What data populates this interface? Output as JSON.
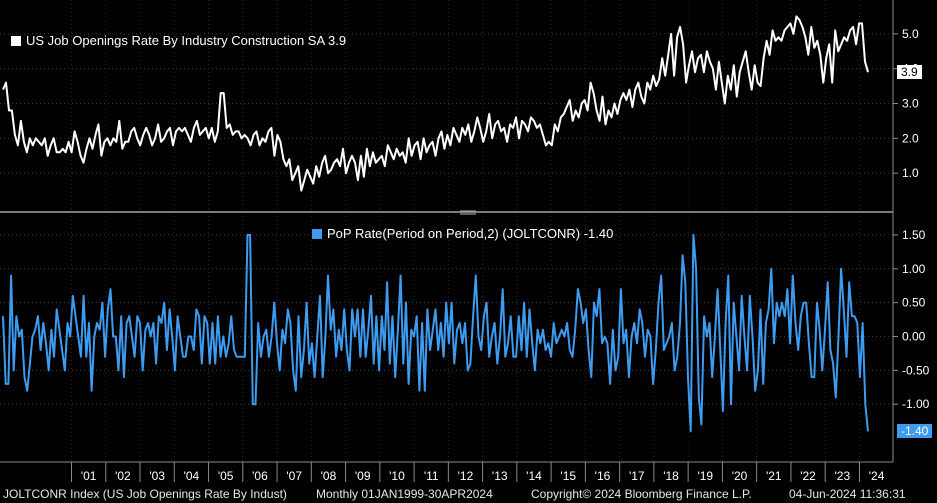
{
  "chart_data": [
    {
      "type": "line",
      "title": "US Job Openings Rate By Industry Construction SA",
      "legend_label": "US Job Openings Rate By Industry Construction SA 3.9",
      "last_value_label": "3.9",
      "color": "#ffffff",
      "ylim": [
        0.0,
        5.8
      ],
      "yticks": [
        "1.0",
        "2.0",
        "3.0",
        "4.0",
        "5.0"
      ],
      "values": [
        3.4,
        3.6,
        2.8,
        2.8,
        2.1,
        1.8,
        2.5,
        1.9,
        1.6,
        2.0,
        1.8,
        2.0,
        1.9,
        1.8,
        2.0,
        1.5,
        1.8,
        2.0,
        1.6,
        1.6,
        1.7,
        1.6,
        1.9,
        1.6,
        2.2,
        1.9,
        1.5,
        1.3,
        1.7,
        2.0,
        1.7,
        2.1,
        2.4,
        1.5,
        1.9,
        2.0,
        1.8,
        2.0,
        1.9,
        2.5,
        1.7,
        1.9,
        1.9,
        2.2,
        2.3,
        2.0,
        1.8,
        2.1,
        2.3,
        2.1,
        1.8,
        2.0,
        2.4,
        1.9,
        2.0,
        2.2,
        2.3,
        1.8,
        2.2,
        2.3,
        2.2,
        2.3,
        2.1,
        1.9,
        2.3,
        2.5,
        2.1,
        2.2,
        2.3,
        2.0,
        2.3,
        1.9,
        2.2,
        3.3,
        3.3,
        2.3,
        2.4,
        2.1,
        2.2,
        2.2,
        2.0,
        2.1,
        2.0,
        1.8,
        2.1,
        2.2,
        1.8,
        2.0,
        1.9,
        2.2,
        2.3,
        1.5,
        2.1,
        1.9,
        1.4,
        1.2,
        1.4,
        0.8,
        1.0,
        1.2,
        0.5,
        0.8,
        1.1,
        0.9,
        0.7,
        1.2,
        0.9,
        1.3,
        1.5,
        1.0,
        1.1,
        1.3,
        1.4,
        1.2,
        1.7,
        1.0,
        1.3,
        1.5,
        1.3,
        0.8,
        1.5,
        0.9,
        1.7,
        1.2,
        1.6,
        1.3,
        1.4,
        1.5,
        1.2,
        1.8,
        1.6,
        1.4,
        1.7,
        1.5,
        1.6,
        1.3,
        2.0,
        1.5,
        1.8,
        1.9,
        1.4,
        2.0,
        1.6,
        1.8,
        1.9,
        1.5,
        2.0,
        2.2,
        1.7,
        2.1,
        1.8,
        2.3,
        2.1,
        1.9,
        2.3,
        2.1,
        2.4,
        1.9,
        2.2,
        2.6,
        2.3,
        1.9,
        2.2,
        2.7,
        2.0,
        2.4,
        2.5,
        2.2,
        2.3,
        1.9,
        2.4,
        2.3,
        2.6,
        2.0,
        2.5,
        2.4,
        2.2,
        2.6,
        2.5,
        2.3,
        2.4,
        2.1,
        1.8,
        1.9,
        1.8,
        2.4,
        2.2,
        2.6,
        2.7,
        2.9,
        3.1,
        2.5,
        2.8,
        2.6,
        3.0,
        3.1,
        2.8,
        3.6,
        3.3,
        2.8,
        2.5,
        3.2,
        2.4,
        2.8,
        2.6,
        3.0,
        2.7,
        3.1,
        3.3,
        3.1,
        3.4,
        2.9,
        3.4,
        3.6,
        3.2,
        3.0,
        3.6,
        3.4,
        3.8,
        3.5,
        3.7,
        4.3,
        3.8,
        4.4,
        5.0,
        3.8,
        4.9,
        5.2,
        4.7,
        3.6,
        4.1,
        4.5,
        3.9,
        4.3,
        4.4,
        3.9,
        4.5,
        4.2,
        4.0,
        3.4,
        4.2,
        3.6,
        3.0,
        3.8,
        3.4,
        4.1,
        3.2,
        3.9,
        4.2,
        4.5,
        3.9,
        3.4,
        4.1,
        3.6,
        3.5,
        4.3,
        4.8,
        4.4,
        5.1,
        4.8,
        4.9,
        4.8,
        5.1,
        5.2,
        5.3,
        5.0,
        5.5,
        5.4,
        5.2,
        4.9,
        4.4,
        5.2,
        4.6,
        4.8,
        4.4,
        3.6,
        4.3,
        4.7,
        3.6,
        5.1,
        4.5,
        4.7,
        4.9,
        4.8,
        5.1,
        5.2,
        4.7,
        5.3,
        5.3,
        4.2,
        3.9
      ]
    },
    {
      "type": "line",
      "title": "PoP Rate(Period on Period,2) (JOLTCONR)",
      "legend_label": "PoP Rate(Period on Period,2) (JOLTCONR) -1.40",
      "last_value_label": "-1.40",
      "color": "#3d9bf0",
      "ylim": [
        -1.75,
        1.75
      ],
      "yticks": [
        "-1.00",
        "-0.50",
        "0.00",
        "0.50",
        "1.00",
        "1.50"
      ],
      "values": [
        0.3,
        -0.7,
        -0.7,
        0.9,
        -0.5,
        0.3,
        0.0,
        0.1,
        -0.6,
        -0.8,
        -0.4,
        0.0,
        0.1,
        0.3,
        -0.2,
        0.2,
        -0.1,
        -0.5,
        0.1,
        -0.3,
        0.4,
        0.1,
        -0.2,
        -0.5,
        0.2,
        0.0,
        0.6,
        0.3,
        0.0,
        -0.3,
        0.6,
        -0.3,
        0.2,
        -0.8,
        0.0,
        0.2,
        0.1,
        0.5,
        -0.3,
        0.4,
        0.7,
        0.0,
        0.0,
        -0.5,
        0.3,
        -0.6,
        0.2,
        0.3,
        0.0,
        -0.3,
        0.3,
        0.2,
        -0.5,
        0.1,
        0.2,
        0.0,
        0.2,
        -0.4,
        0.3,
        0.2,
        0.5,
        -0.2,
        0.4,
        0.0,
        -0.5,
        0.3,
        0.0,
        -0.3,
        -0.3,
        0.0,
        0.0,
        -0.2,
        0.4,
        0.3,
        -0.4,
        0.3,
        0.2,
        -0.4,
        0.2,
        -0.4,
        0.3,
        -0.3,
        0.0,
        -0.3,
        -0.1,
        0.3,
        -0.2,
        -0.3,
        -0.3,
        -0.3,
        -0.3,
        1.5,
        1.5,
        -1.0,
        -1.0,
        0.2,
        -0.3,
        0.0,
        0.1,
        -0.3,
        0.0,
        0.5,
        -0.1,
        -0.5,
        0.1,
        -0.1,
        0.4,
        0.2,
        -0.5,
        -0.8,
        0.3,
        -0.6,
        -0.2,
        0.5,
        -0.4,
        -0.1,
        -0.6,
        0.0,
        0.6,
        -0.6,
        0.0,
        0.9,
        0.1,
        0.4,
        -0.3,
        0.1,
        -0.2,
        0.4,
        -0.2,
        -0.5,
        0.4,
        0.0,
        0.4,
        -0.3,
        0.4,
        -0.3,
        0.1,
        0.6,
        -0.4,
        0.3,
        -0.5,
        0.3,
        -0.2,
        0.8,
        -0.4,
        0.3,
        -0.6,
        0.1,
        0.9,
        -0.4,
        0.5,
        -0.7,
        0.1,
        0.0,
        0.3,
        -0.8,
        0.2,
        -0.8,
        0.4,
        -0.2,
        0.1,
        0.4,
        -0.2,
        0.2,
        -0.3,
        0.5,
        -0.1,
        0.5,
        -0.4,
        0.1,
        0.2,
        -0.1,
        0.2,
        -0.5,
        -0.4,
        0.3,
        0.9,
        0.0,
        -0.2,
        0.3,
        0.5,
        -0.3,
        0.0,
        0.2,
        -0.4,
        0.0,
        0.7,
        -0.3,
        -0.1,
        0.3,
        -0.3,
        -0.3,
        0.3,
        -0.2,
        0.5,
        -0.3,
        0.4,
        -0.1,
        -0.5,
        0.1,
        -0.1,
        0.1,
        -0.2,
        -0.1,
        -0.3,
        0.2,
        -0.1,
        0.0,
        0.1,
        0.0,
        0.2,
        -0.2,
        -0.3,
        0.1,
        0.7,
        0.5,
        0.2,
        0.4,
        -0.2,
        -0.6,
        0.5,
        0.3,
        0.7,
        -0.1,
        0.0,
        -0.1,
        -0.7,
        0.1,
        -0.5,
        -0.3,
        0.7,
        -0.1,
        0.1,
        -0.6,
        0.0,
        0.2,
        -0.1,
        0.4,
        0.2,
        -0.3,
        0.1,
        0.0,
        -0.7,
        -0.2,
        0.5,
        0.9,
        -0.2,
        -0.1,
        0.0,
        0.2,
        -0.5,
        -0.3,
        0.2,
        1.2,
        0.8,
        -0.6,
        -1.4,
        1.5,
        1.0,
        -0.9,
        -1.3,
        0.3,
        0.0,
        0.2,
        -0.6,
        0.0,
        0.7,
        -0.2,
        -1.1,
        0.2,
        0.9,
        -1.0,
        0.5,
        0.0,
        -0.5,
        0.6,
        0.0,
        -0.5,
        0.6,
        0.0,
        -0.8,
        -0.5,
        0.4,
        -0.7,
        0.2,
        0.4,
        1.0,
        -0.1,
        0.5,
        0.3,
        0.5,
        0.3,
        0.7,
        -0.1,
        0.9,
        0.2,
        -0.2,
        0.3,
        0.5,
        0.5,
        -0.1,
        -0.6,
        -0.6,
        0.5,
        0.1,
        -0.5,
        0.1,
        0.8,
        -0.2,
        -0.4,
        -0.9,
        0.0,
        1.0,
        0.4,
        -0.3,
        0.8,
        0.3,
        0.3,
        0.2,
        -0.6,
        0.2,
        -1.0,
        -1.4
      ]
    }
  ],
  "x_axis": {
    "tick_labels": [
      "'01",
      "'02",
      "'03",
      "'04",
      "'05",
      "'06",
      "'07",
      "'08",
      "'09",
      "'10",
      "'11",
      "'12",
      "'13",
      "'14",
      "'15",
      "'16",
      "'17",
      "'18",
      "'19",
      "'20",
      "'21",
      "'22",
      "'23",
      "'24"
    ],
    "start": "01JAN1999",
    "end": "30APR2024"
  },
  "footer": {
    "ticker": "JOLTCONR Index (US Job Openings Rate By Indust)",
    "range": "Monthly 01JAN1999-30APR2024",
    "copyright": "Copyright© 2024 Bloomberg Finance L.P.",
    "timestamp": "04-Jun-2024 11:36:31"
  }
}
